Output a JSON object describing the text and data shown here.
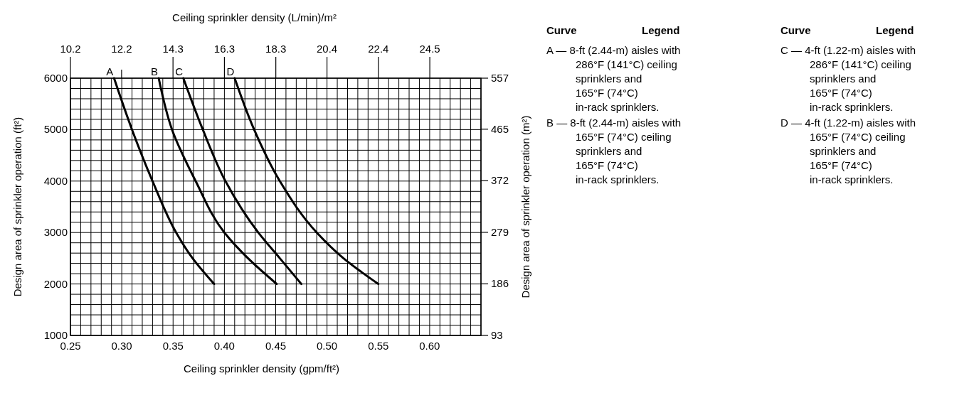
{
  "chart_data": {
    "type": "line",
    "xlabel": "Ceiling sprinkler density (gpm/ft²)",
    "x2label": "Ceiling sprinkler density (L/min)/m²",
    "ylabel": "Design area of sprinkler operation (ft²)",
    "y2label": "Design area of sprinkler operation (m²)",
    "xlim": [
      0.25,
      0.65
    ],
    "xticks": [
      {
        "value": 0.25,
        "label": "0.25"
      },
      {
        "value": 0.3,
        "label": "0.30"
      },
      {
        "value": 0.35,
        "label": "0.35"
      },
      {
        "value": 0.4,
        "label": "0.40"
      },
      {
        "value": 0.45,
        "label": "0.45"
      },
      {
        "value": 0.5,
        "label": "0.50"
      },
      {
        "value": 0.55,
        "label": "0.55"
      },
      {
        "value": 0.6,
        "label": "0.60"
      }
    ],
    "x2lim": [
      10.19,
      26.48
    ],
    "x2ticks": [
      {
        "value": 10.19,
        "label": "10.2"
      },
      {
        "value": 12.22,
        "label": "12.2"
      },
      {
        "value": 14.26,
        "label": "14.3"
      },
      {
        "value": 16.3,
        "label": "16.3"
      },
      {
        "value": 18.34,
        "label": "18.3"
      },
      {
        "value": 20.37,
        "label": "20.4"
      },
      {
        "value": 22.41,
        "label": "22.4"
      },
      {
        "value": 24.45,
        "label": "24.5"
      }
    ],
    "ylim": [
      1000,
      6000
    ],
    "yticks": [
      1000,
      2000,
      3000,
      4000,
      5000,
      6000
    ],
    "y2lim": [
      93,
      557
    ],
    "y2ticks": [
      93,
      186,
      279,
      372,
      465,
      557
    ],
    "grid": true,
    "legend": "top",
    "marker": "none",
    "line_style": "solid",
    "series": [
      {
        "name": "A",
        "color": "#000000",
        "x": [
          0.2925,
          0.31,
          0.33,
          0.353,
          0.369,
          0.39
        ],
        "values": [
          6000,
          5000,
          4000,
          3000,
          2500,
          2000
        ]
      },
      {
        "name": "B",
        "color": "#000000",
        "x": [
          0.336,
          0.349,
          0.372,
          0.4,
          0.423,
          0.451
        ],
        "values": [
          6000,
          5000,
          4000,
          3000,
          2500,
          2000
        ]
      },
      {
        "name": "C",
        "color": "#000000",
        "x": [
          0.36,
          0.379,
          0.401,
          0.433,
          0.454,
          0.475
        ],
        "values": [
          6000,
          5000,
          4000,
          3000,
          2500,
          2000
        ]
      },
      {
        "name": "D",
        "color": "#000000",
        "x": [
          0.41,
          0.429,
          0.454,
          0.49,
          0.516,
          0.55
        ],
        "values": [
          6000,
          5000,
          4000,
          3000,
          2500,
          2000
        ]
      }
    ],
    "annotations": [
      "Curve",
      "Legend",
      "A — 8-ft (2.44-m) aisles with\n286°F (141°C) ceiling\nsprinklers and\n165°F (74°C)\nin-rack sprinklers.",
      "B — 8-ft (2.44-m) aisles with\n165°F (74°C) ceiling\nsprinklers and\n165°F (74°C)\nin-rack sprinklers.",
      "Curve",
      "Legend",
      "C — 4-ft (1.22-m) aisles with\n286°F (141°C) ceiling\nsprinklers and\n165°F (74°C)\nin-rack sprinklers.",
      "D — 4-ft (1.22-m) aisles with\n165°F (74°C) ceiling\nsprinklers and\n165°F (74°C)\nin-rack sprinklers."
    ]
  }
}
